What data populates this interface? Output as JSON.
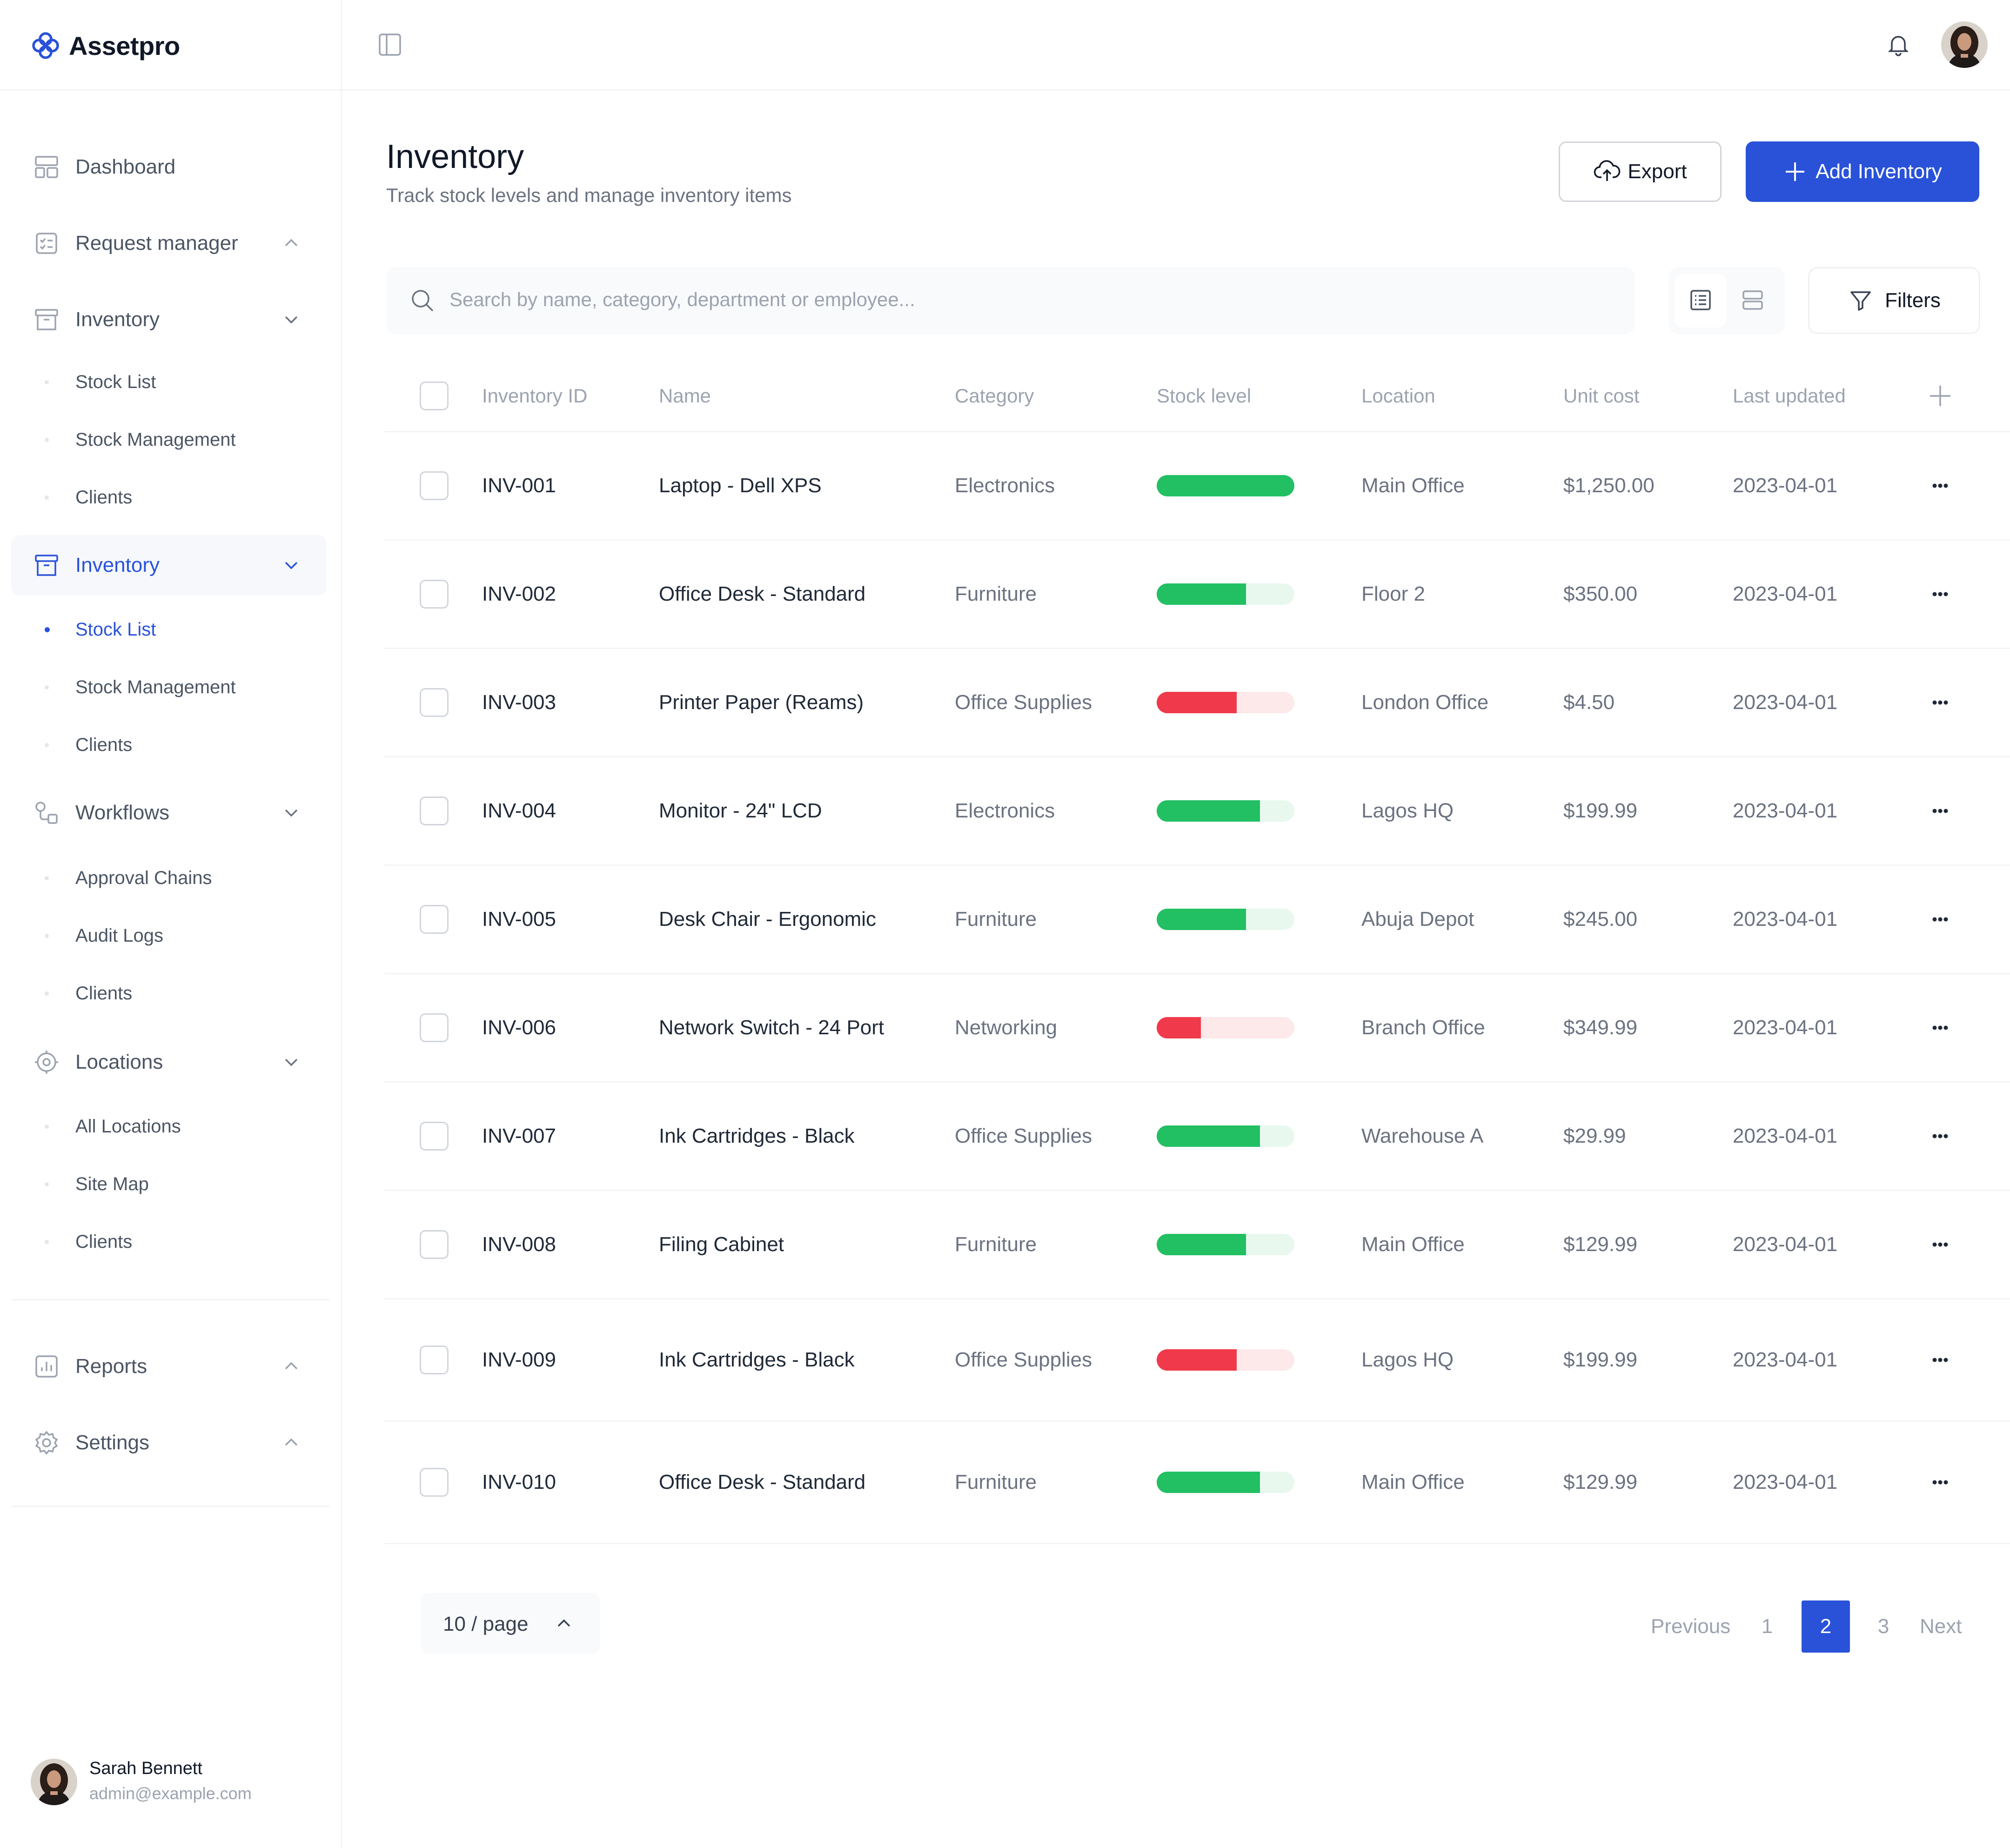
{
  "app": {
    "name": "Assetpro"
  },
  "sidebar": {
    "items": [
      {
        "label": "Dashboard"
      },
      {
        "label": "Request manager"
      },
      {
        "label": "Inventory",
        "subitems": [
          "Stock List",
          "Stock Management",
          "Clients"
        ]
      },
      {
        "label": "Inventory",
        "active": true,
        "subitems": [
          "Stock List",
          "Stock Management",
          "Clients"
        ],
        "active_subitem": "Stock List"
      },
      {
        "label": "Workflows",
        "subitems": [
          "Approval Chains",
          "Audit Logs",
          "Clients"
        ]
      },
      {
        "label": "Locations",
        "subitems": [
          "All Locations",
          "Site Map",
          "Clients"
        ]
      },
      {
        "label": "Reports"
      },
      {
        "label": "Settings"
      }
    ],
    "user": {
      "name": "Sarah Bennett",
      "email": "admin@example.com"
    }
  },
  "header": {
    "title": "Inventory",
    "subtitle": "Track stock levels and manage inventory items",
    "export_label": "Export",
    "add_label": "Add Inventory"
  },
  "toolbar": {
    "search_placeholder": "Search by name, category, department or employee...",
    "filters_label": "Filters"
  },
  "table": {
    "columns": [
      "Inventory ID",
      "Name",
      "Category",
      "Stock level",
      "Location",
      "Unit cost",
      "Last updated"
    ],
    "rows": [
      {
        "id": "INV-001",
        "name": "Laptop - Dell XPS",
        "category": "Electronics",
        "stock": 1.0,
        "status": "good",
        "location": "Main Office",
        "cost": "$1,250.00",
        "updated": "2023-04-01"
      },
      {
        "id": "INV-002",
        "name": "Office Desk - Standard",
        "category": "Furniture",
        "stock": 0.65,
        "status": "good",
        "location": "Floor 2",
        "cost": "$350.00",
        "updated": "2023-04-01"
      },
      {
        "id": "INV-003",
        "name": "Printer Paper (Reams)",
        "category": "Office Supplies",
        "stock": 0.58,
        "status": "low",
        "location": "London Office",
        "cost": "$4.50",
        "updated": "2023-04-01"
      },
      {
        "id": "INV-004",
        "name": "Monitor - 24\" LCD",
        "category": "Electronics",
        "stock": 0.75,
        "status": "good",
        "location": "Lagos HQ",
        "cost": "$199.99",
        "updated": "2023-04-01"
      },
      {
        "id": "INV-005",
        "name": "Desk Chair - Ergonomic",
        "category": "Furniture",
        "stock": 0.65,
        "status": "good",
        "location": "Abuja Depot",
        "cost": "$245.00",
        "updated": "2023-04-01"
      },
      {
        "id": "INV-006",
        "name": "Network Switch - 24 Port",
        "category": "Networking",
        "stock": 0.32,
        "status": "low",
        "location": "Branch Office",
        "cost": "$349.99",
        "updated": "2023-04-01"
      },
      {
        "id": "INV-007",
        "name": "Ink Cartridges - Black",
        "category": "Office Supplies",
        "stock": 0.75,
        "status": "good",
        "location": "Warehouse A",
        "cost": "$29.99",
        "updated": "2023-04-01"
      },
      {
        "id": "INV-008",
        "name": "Filing Cabinet",
        "category": "Furniture",
        "stock": 0.65,
        "status": "good",
        "location": "Main Office",
        "cost": "$129.99",
        "updated": "2023-04-01"
      },
      {
        "id": "INV-009",
        "name": "Ink Cartridges - Black",
        "category": "Office Supplies",
        "stock": 0.58,
        "status": "low",
        "location": "Lagos HQ",
        "cost": "$199.99",
        "updated": "2023-04-01"
      },
      {
        "id": "INV-010",
        "name": "Office Desk - Standard",
        "category": "Furniture",
        "stock": 0.75,
        "status": "good",
        "location": "Main Office",
        "cost": "$129.99",
        "updated": "2023-04-01"
      }
    ]
  },
  "pagination": {
    "per_page": "10 / page",
    "previous": "Previous",
    "pages": [
      "1",
      "2",
      "3"
    ],
    "current": "2",
    "next": "Next"
  },
  "colors": {
    "accent": "#2952d9",
    "stock_good": "#22c063",
    "stock_good_track": "#e8f8ee",
    "stock_low": "#f0394a",
    "stock_low_track": "#fde8ea"
  }
}
